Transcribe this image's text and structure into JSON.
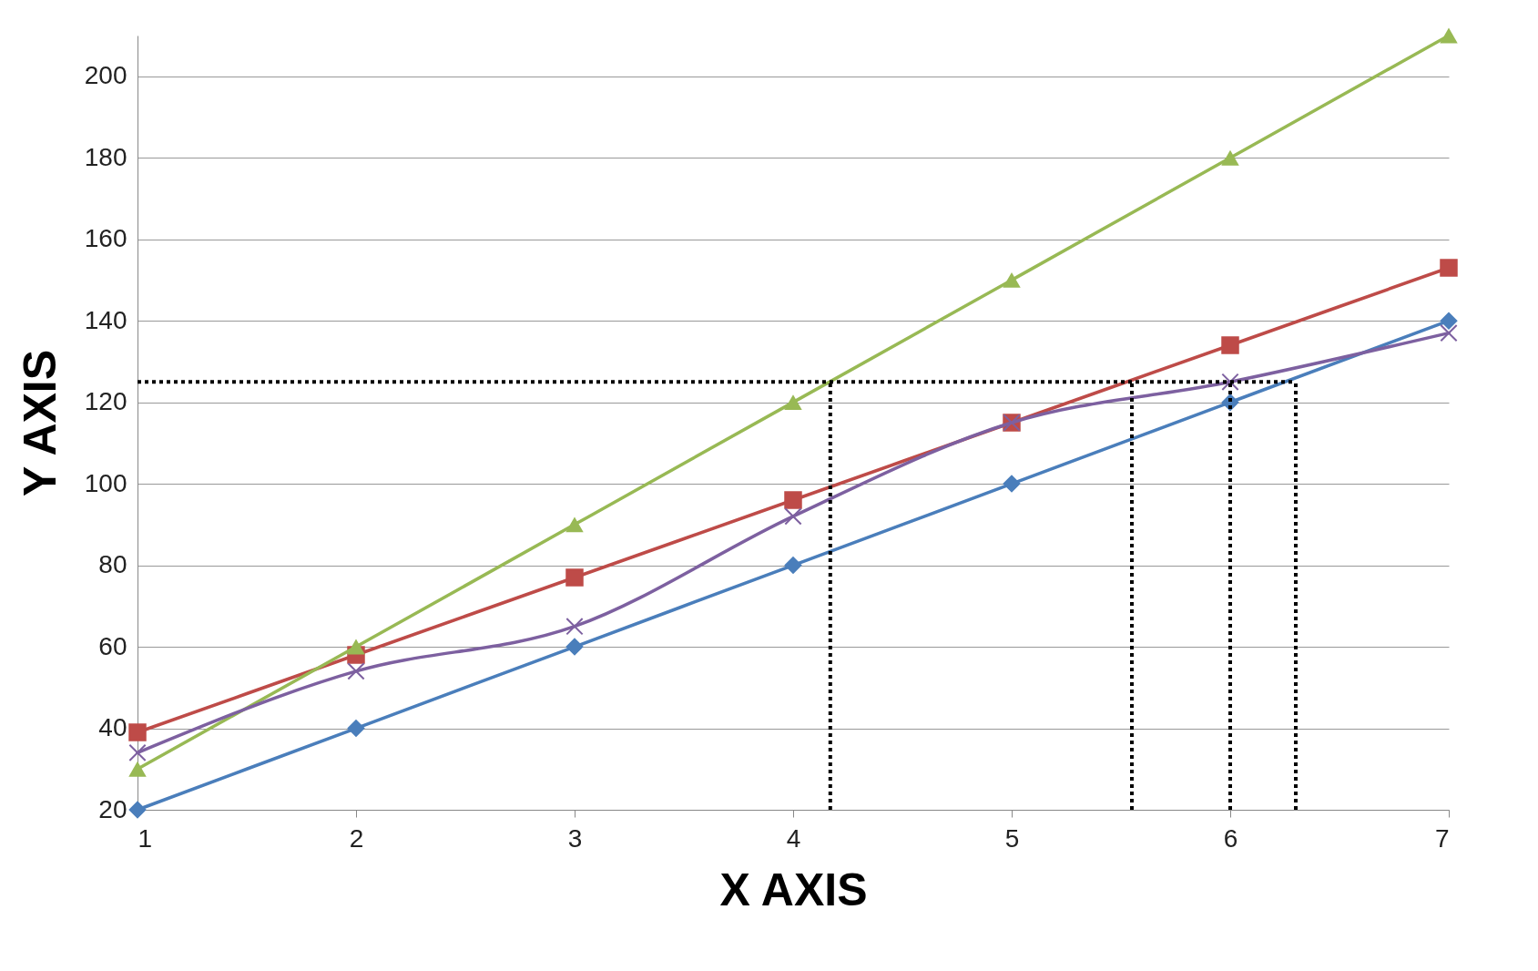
{
  "chart_data": {
    "type": "line",
    "xlabel": "X AXIS",
    "ylabel": "Y AXIS",
    "x": [
      1,
      2,
      3,
      4,
      5,
      6,
      7
    ],
    "xlim": [
      1,
      7
    ],
    "xticks": [
      1,
      2,
      3,
      4,
      5,
      6,
      7
    ],
    "ylim": [
      20,
      210
    ],
    "yticks": [
      20,
      40,
      60,
      80,
      100,
      120,
      140,
      160,
      180,
      200
    ],
    "grid": "y",
    "series": [
      {
        "color": "#4a7ebb",
        "marker": "diamond",
        "values": [
          20,
          40,
          60,
          80,
          100,
          120,
          140
        ]
      },
      {
        "color": "#be4b48",
        "marker": "square",
        "values": [
          39,
          58,
          77,
          96,
          115,
          134,
          153
        ]
      },
      {
        "color": "#98b954",
        "marker": "triangle",
        "values": [
          30,
          60,
          90,
          120,
          150,
          180,
          210
        ]
      },
      {
        "color": "#7d60a0",
        "marker": "cross",
        "values": [
          34,
          54,
          65,
          92,
          115,
          125,
          137
        ]
      },
      {
        "color": "#000000",
        "marker": "none",
        "line_style": "dotted",
        "x": [
          1,
          6.3
        ],
        "values": [
          125,
          125
        ]
      },
      {
        "color": "#000000",
        "marker": "none",
        "line_style": "dotted",
        "x": [
          4.17,
          4.17
        ],
        "values": [
          20,
          125
        ]
      },
      {
        "color": "#000000",
        "marker": "none",
        "line_style": "dotted",
        "x": [
          5.55,
          5.55
        ],
        "values": [
          20,
          125
        ]
      },
      {
        "color": "#000000",
        "marker": "none",
        "line_style": "dotted",
        "x": [
          6,
          6
        ],
        "values": [
          20,
          125
        ]
      },
      {
        "color": "#000000",
        "marker": "none",
        "line_style": "dotted",
        "x": [
          6.3,
          6.3
        ],
        "values": [
          20,
          125
        ]
      }
    ]
  }
}
